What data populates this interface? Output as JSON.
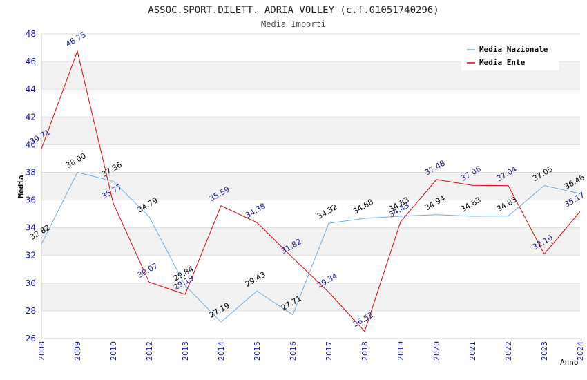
{
  "chart_data": {
    "type": "line",
    "title": "ASSOC.SPORT.DILETT. ADRIA VOLLEY (c.f.01051740296)",
    "subtitle": "Media Importi",
    "xlabel": "Anno",
    "ylabel": "Media",
    "ylim": [
      26,
      48
    ],
    "yticks": [
      26,
      28,
      30,
      32,
      34,
      36,
      38,
      40,
      42,
      44,
      46,
      48
    ],
    "categories": [
      "2008",
      "2009",
      "2010",
      "2012",
      "2013",
      "2014",
      "2015",
      "2016",
      "2017",
      "2018",
      "2019",
      "2020",
      "2021",
      "2022",
      "2023",
      "2024"
    ],
    "grid": true,
    "legend_position": "top-right",
    "series": [
      {
        "name": "Media Nazionale",
        "color": "#6aaee6",
        "values": [
          32.82,
          38.0,
          37.36,
          34.79,
          29.84,
          27.19,
          29.43,
          27.71,
          34.32,
          34.68,
          34.83,
          34.94,
          34.83,
          34.85,
          37.05,
          36.46
        ],
        "labels": [
          "32.82",
          "38.00",
          "37.36",
          "34.79",
          "29.84",
          "27.19",
          "29.43",
          "27.71",
          "34.32",
          "34.68",
          "34.83",
          "34.94",
          "34.83",
          "34.85",
          "37.05",
          "36.46"
        ]
      },
      {
        "name": "Media Ente",
        "color": "#e00000",
        "values": [
          39.71,
          46.75,
          35.77,
          30.07,
          29.19,
          35.59,
          34.38,
          31.82,
          29.34,
          26.52,
          34.43,
          37.48,
          37.06,
          37.04,
          32.1,
          35.17
        ],
        "labels": [
          "39.71",
          "46.75",
          "35.77",
          "30.07",
          "29.19",
          "35.59",
          "34.38",
          "31.82",
          "29.34",
          "26.52",
          "34.43",
          "37.48",
          "37.06",
          "37.04",
          "32.10",
          "35.17"
        ]
      }
    ]
  }
}
